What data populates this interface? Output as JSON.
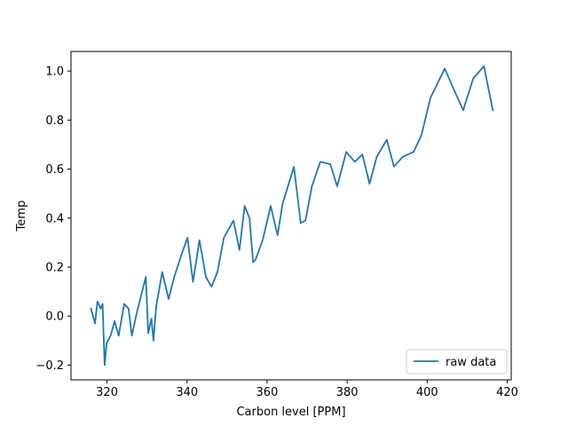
{
  "chart_data": {
    "type": "line",
    "xlabel": "Carbon level [PPM]",
    "ylabel": "Temp",
    "xlim": [
      311,
      421
    ],
    "ylim": [
      -0.26,
      1.08
    ],
    "xticks": [
      320,
      340,
      360,
      380,
      400,
      420
    ],
    "yticks": [
      -0.2,
      0.0,
      0.2,
      0.4,
      0.6,
      0.8,
      1.0
    ],
    "xtick_labels": [
      "320",
      "340",
      "360",
      "380",
      "400",
      "420"
    ],
    "ytick_labels": [
      "−0.2",
      "0.0",
      "0.2",
      "0.4",
      "0.6",
      "0.8",
      "1.0"
    ],
    "grid": false,
    "legend_position": "lower-right",
    "series": [
      {
        "name": "raw data",
        "color": "#1f77b4",
        "x": [
          316.0,
          317.0,
          317.6,
          318.4,
          318.9,
          319.4,
          319.9,
          320.9,
          321.9,
          322.9,
          324.3,
          325.4,
          326.2,
          327.4,
          329.7,
          330.3,
          331.1,
          331.6,
          332.3,
          333.8,
          335.4,
          336.8,
          338.8,
          340.1,
          341.5,
          343.1,
          344.7,
          346.1,
          347.6,
          349.2,
          351.6,
          353.1,
          354.4,
          355.6,
          356.5,
          357.1,
          358.9,
          360.9,
          362.6,
          363.9,
          366.7,
          368.4,
          369.6,
          371.2,
          373.3,
          375.8,
          377.5,
          379.8,
          381.9,
          383.8,
          385.6,
          387.4,
          389.9,
          391.7,
          393.9,
          396.6,
          398.6,
          400.8,
          404.4,
          406.8,
          409.0,
          411.5,
          414.2,
          416.4
        ],
        "y": [
          0.03,
          -0.03,
          0.06,
          0.03,
          0.05,
          -0.2,
          -0.11,
          -0.08,
          -0.02,
          -0.08,
          0.05,
          0.03,
          -0.08,
          0.01,
          0.16,
          -0.07,
          -0.01,
          -0.1,
          0.04,
          0.18,
          0.07,
          0.16,
          0.26,
          0.32,
          0.14,
          0.31,
          0.16,
          0.12,
          0.18,
          0.32,
          0.39,
          0.27,
          0.45,
          0.4,
          0.22,
          0.23,
          0.31,
          0.45,
          0.33,
          0.46,
          0.61,
          0.38,
          0.39,
          0.53,
          0.63,
          0.62,
          0.53,
          0.67,
          0.63,
          0.66,
          0.54,
          0.65,
          0.72,
          0.61,
          0.65,
          0.67,
          0.74,
          0.89,
          1.01,
          0.92,
          0.84,
          0.97,
          1.02,
          0.84
        ]
      }
    ]
  }
}
